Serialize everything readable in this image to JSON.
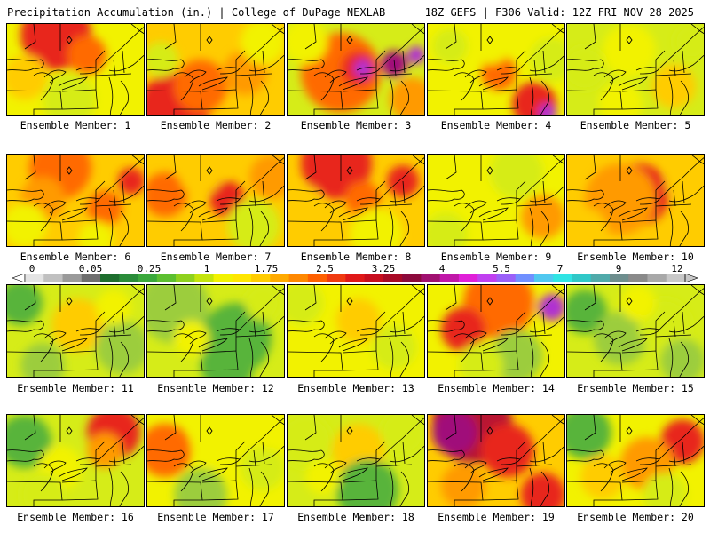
{
  "header": {
    "title_left": "Precipitation Accumulation (in.) | College of DuPage NEXLAB",
    "title_right": "18Z GEFS | F306 Valid: 12Z FRI NOV 28 2025"
  },
  "legend": {
    "tick_labels": [
      "0",
      "0.05",
      "0.25",
      "1",
      "1.75",
      "2.5",
      "3.25",
      "4",
      "5.5",
      "7",
      "9",
      "12"
    ],
    "colors": [
      "#e4e4e4",
      "#c0c0c0",
      "#9a9a9a",
      "#6e6e6e",
      "#1e6e2e",
      "#2a8c3a",
      "#3aa83c",
      "#5cbf30",
      "#8ed11e",
      "#c4e40c",
      "#f2f200",
      "#ffe600",
      "#ffcc00",
      "#ffaa00",
      "#ff8800",
      "#ff6000",
      "#f03a10",
      "#e01818",
      "#c80e1e",
      "#a80a26",
      "#8c0a3c",
      "#a01070",
      "#c018a8",
      "#e020d8",
      "#c040f0",
      "#9a60f8",
      "#7090ff",
      "#50c8f0",
      "#30e4e4",
      "#30c8c8",
      "#50aaaa",
      "#6e8e8e",
      "#8a8a8a",
      "#a8a8a8",
      "#c8c8c8"
    ]
  },
  "palette": {
    "dkgreen": "#2f8a3a",
    "green": "#58b43a",
    "ltgreen": "#9ccd3c",
    "yelgreen": "#d6ec18",
    "yellow": "#f2f200",
    "ltorange": "#ffcc00",
    "orange": "#ff9a00",
    "dkorange": "#ff6a00",
    "red": "#e8281a",
    "dkred": "#b81430",
    "magenta": "#a0107a",
    "purple": "#b030d0"
  },
  "members": [
    {
      "label": "Ensemble Member: 1"
    },
    {
      "label": "Ensemble Member: 2"
    },
    {
      "label": "Ensemble Member: 3"
    },
    {
      "label": "Ensemble Member: 4"
    },
    {
      "label": "Ensemble Member: 5"
    },
    {
      "label": "Ensemble Member: 6"
    },
    {
      "label": "Ensemble Member: 7"
    },
    {
      "label": "Ensemble Member: 8"
    },
    {
      "label": "Ensemble Member: 9"
    },
    {
      "label": "Ensemble Member: 10"
    },
    {
      "label": "Ensemble Member: 11"
    },
    {
      "label": "Ensemble Member: 12"
    },
    {
      "label": "Ensemble Member: 13"
    },
    {
      "label": "Ensemble Member: 14"
    },
    {
      "label": "Ensemble Member: 15"
    },
    {
      "label": "Ensemble Member: 16"
    },
    {
      "label": "Ensemble Member: 17"
    },
    {
      "label": "Ensemble Member: 18"
    },
    {
      "label": "Ensemble Member: 19"
    },
    {
      "label": "Ensemble Member: 20"
    }
  ]
}
